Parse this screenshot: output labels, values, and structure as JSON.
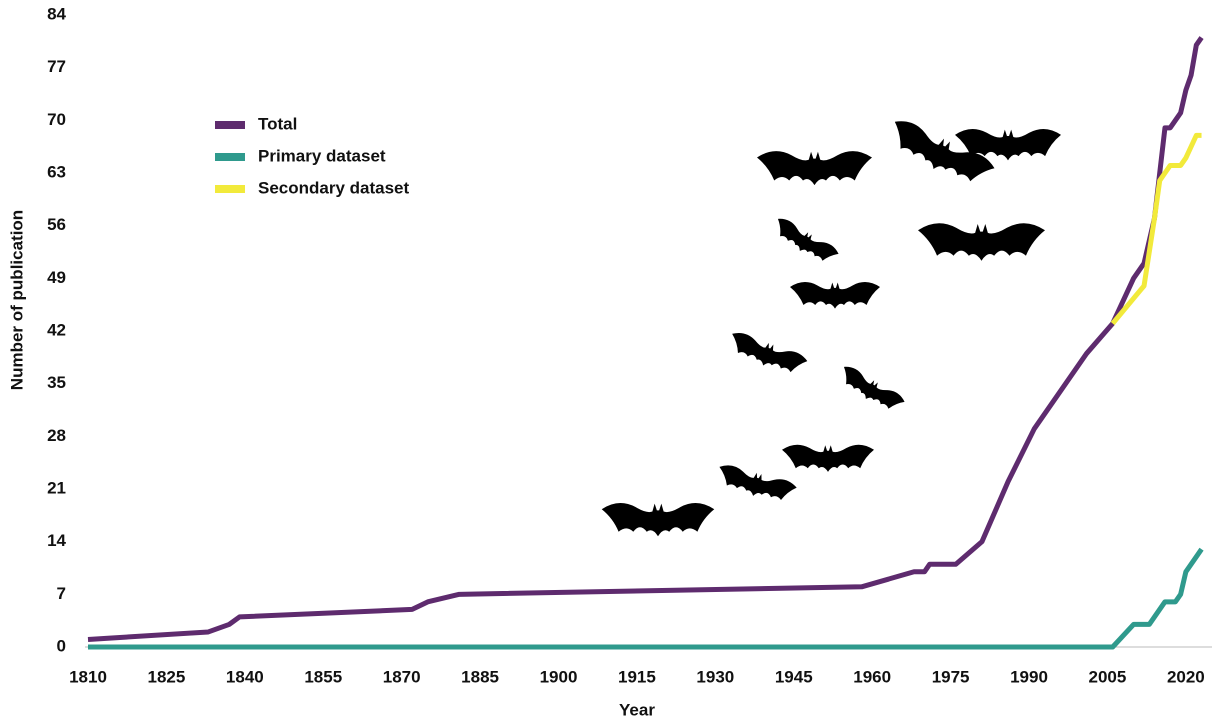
{
  "chart_data": {
    "type": "line",
    "x_label": "Year",
    "y_label": "Number of publication",
    "xlim": [
      1810,
      2025
    ],
    "xticks": [
      1810,
      1825,
      1840,
      1855,
      1870,
      1885,
      1900,
      1915,
      1930,
      1945,
      1960,
      1975,
      1990,
      2005,
      2020
    ],
    "ylim": [
      0,
      84
    ],
    "yticks": [
      0,
      7,
      14,
      21,
      28,
      35,
      42,
      49,
      56,
      63,
      70,
      77,
      84
    ],
    "grid": false,
    "legend": "upper left",
    "series": [
      {
        "name": "Total",
        "color": "#5e2b6e",
        "x": [
          1810,
          1833,
          1837,
          1839,
          1872,
          1875,
          1881,
          1958,
          1963,
          1968,
          1970,
          1971,
          1976,
          1981,
          1986,
          1991,
          2001,
          2006,
          2010,
          2012,
          2014,
          2015,
          2016,
          2017,
          2019,
          2020,
          2021,
          2022,
          2023
        ],
        "values": [
          1,
          2,
          3,
          4,
          5,
          6,
          7,
          8,
          9,
          10,
          10,
          11,
          11,
          14,
          22,
          29,
          39,
          43,
          49,
          51,
          57,
          63,
          69,
          69,
          71,
          74,
          76,
          80,
          81
        ]
      },
      {
        "name": "Primary dataset",
        "color": "#2f9a8d",
        "x": [
          1810,
          2006,
          2010,
          2013,
          2016,
          2018,
          2019,
          2020,
          2023
        ],
        "values": [
          0,
          0,
          3,
          3,
          6,
          6,
          7,
          10,
          13
        ]
      },
      {
        "name": "Secondary dataset",
        "color": "#f2ea3b",
        "x": [
          2006,
          2012,
          2014,
          2015,
          2016,
          2017,
          2019,
          2020,
          2022,
          2023
        ],
        "values": [
          43,
          48,
          57,
          62,
          63,
          64,
          64,
          65,
          68,
          68
        ]
      }
    ]
  }
}
